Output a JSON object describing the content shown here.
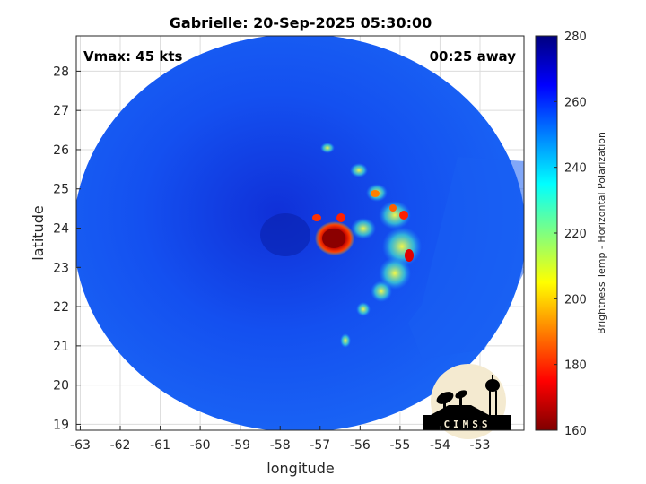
{
  "chart_data": {
    "type": "heatmap",
    "title": "Gabrielle: 20-Sep-2025 05:30:00",
    "xlabel": "longitude",
    "ylabel": "latitude",
    "xlim": [
      -63.1,
      -51.9
    ],
    "ylim": [
      18.85,
      28.9
    ],
    "x_ticks": [
      -63,
      -62,
      -61,
      -60,
      -59,
      -58,
      -57,
      -56,
      -55,
      -54,
      -53
    ],
    "y_ticks": [
      19,
      20,
      21,
      22,
      23,
      24,
      25,
      26,
      27,
      28
    ],
    "grid": true,
    "annotations": {
      "vmax": "Vmax: 45 kts",
      "time_away": "00:25 away"
    },
    "storm_center": {
      "lon": -57.0,
      "lat": 23.6
    },
    "colorbar": {
      "label": "Brightness Temp - Horizontal Polarization",
      "range": [
        160,
        280
      ],
      "ticks": [
        160,
        180,
        200,
        220,
        240,
        260,
        280
      ],
      "colormap": "jet"
    },
    "logo": "CIMSS"
  }
}
